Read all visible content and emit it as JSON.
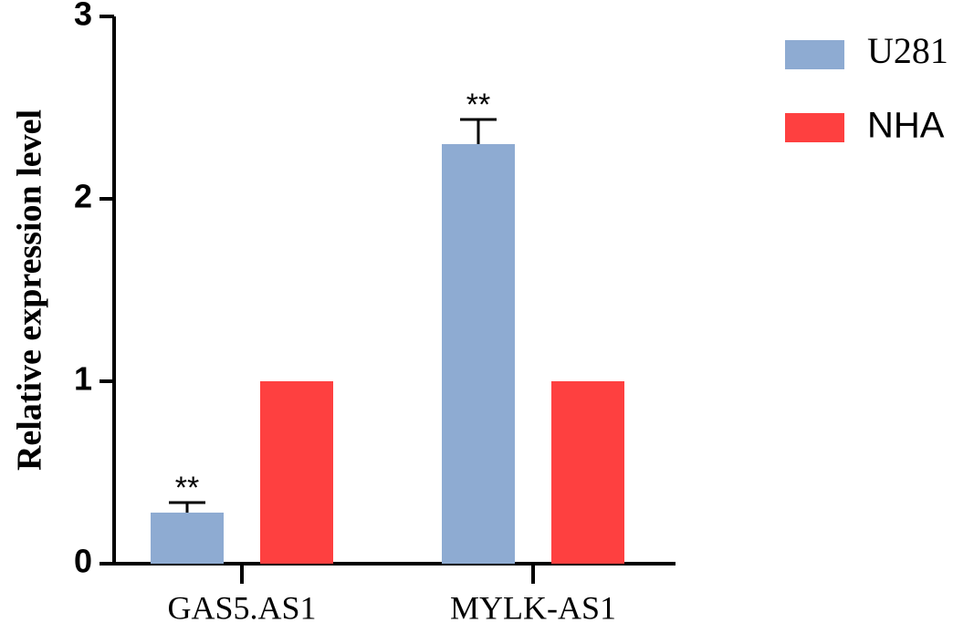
{
  "chart_data": {
    "type": "bar",
    "y_label": "Relative expression level",
    "categories": [
      "GAS5.AS1",
      "MYLK-AS1"
    ],
    "series": [
      {
        "name": "U281",
        "color": "#8eabd2",
        "values": [
          0.28,
          2.3
        ],
        "errors": [
          0.055,
          0.135
        ],
        "annotations": [
          "**",
          "**"
        ]
      },
      {
        "name": "NHA",
        "color": "#fe4040",
        "values": [
          1,
          1
        ]
      }
    ],
    "ylim": [
      0,
      3
    ],
    "yticks": [
      0,
      1,
      2,
      3
    ],
    "grid": false
  }
}
